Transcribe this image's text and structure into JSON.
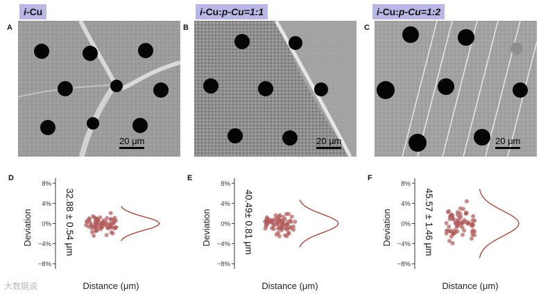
{
  "panels": [
    {
      "letter": "A",
      "title_prefix": "i-",
      "title_main": "Cu",
      "title_suffix": "",
      "scale": "20 μm"
    },
    {
      "letter": "B",
      "title_prefix": "i-",
      "title_main": "Cu:",
      "title_suffix": "p-Cu=1:1",
      "scale": "20 μm"
    },
    {
      "letter": "C",
      "title_prefix": "i-",
      "title_main": "Cu:",
      "title_suffix": "p-Cu=1:2",
      "scale": "20 μm"
    }
  ],
  "chart_data": [
    {
      "letter": "D",
      "type": "scatter",
      "xlabel": "Distance (μm)",
      "ylabel": "Deviation",
      "yticks": [
        "8%",
        "4%",
        "0%",
        "−4%",
        "−8%"
      ],
      "ylim": [
        -9,
        9
      ],
      "annotation": "32.88 ± 0.54 μm",
      "spread": 2.8,
      "curve_halfwidth": 3.0,
      "point_color": "#b05a5a",
      "curve_color": "#a23c2f"
    },
    {
      "letter": "E",
      "type": "scatter",
      "xlabel": "Distance (μm)",
      "ylabel": "Deviation",
      "yticks": [
        "8%",
        "4%",
        "0%",
        "−4%",
        "−8%"
      ],
      "ylim": [
        -9,
        9
      ],
      "annotation": "40.49± 0.81 μm",
      "spread": 3.5,
      "curve_halfwidth": 4.0,
      "point_color": "#b05a5a",
      "curve_color": "#a23c2f"
    },
    {
      "letter": "F",
      "type": "scatter",
      "xlabel": "Distance (μm)",
      "ylabel": "Deviation",
      "yticks": [
        "8%",
        "4%",
        "0%",
        "−4%",
        "−8%"
      ],
      "ylim": [
        -9,
        9
      ],
      "annotation": "45.57 ± 1.46 μm",
      "spread": 5.0,
      "curve_halfwidth": 5.5,
      "point_color": "#b05a5a",
      "curve_color": "#a23c2f"
    }
  ],
  "watermark": "大数据说"
}
